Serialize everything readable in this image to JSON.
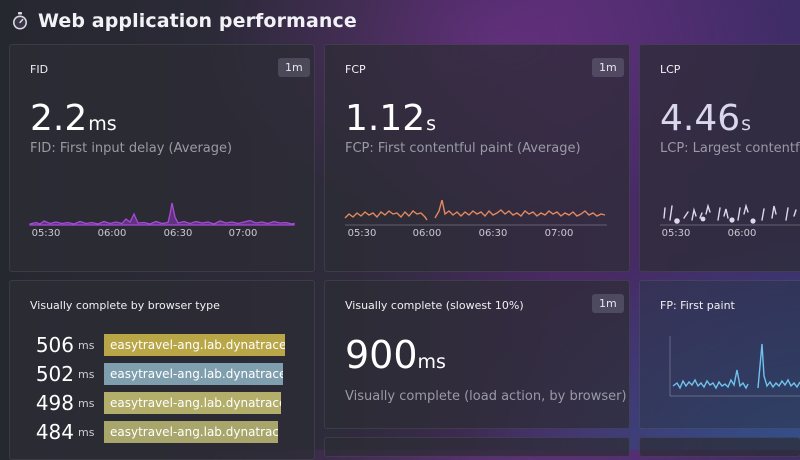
{
  "header": {
    "title": "Web application performance",
    "icon": "stopwatch-icon"
  },
  "tiles": {
    "fid": {
      "title": "FID",
      "badge": "1m",
      "value": "2.2",
      "unit": "ms",
      "description": "FID: First input delay (Average)",
      "ticks": [
        "05:30",
        "06:00",
        "06:30",
        "07:00"
      ],
      "color": "#9a3fcc"
    },
    "fcp": {
      "title": "FCP",
      "badge": "1m",
      "value": "1.12",
      "unit": "s",
      "description": "FCP: First contentful paint (Average)",
      "ticks": [
        "05:30",
        "06:00",
        "06:30",
        "07:00"
      ],
      "color": "#e4895d"
    },
    "lcp": {
      "title": "LCP",
      "value": "4.46",
      "unit": "s",
      "description": "LCP: Largest contentful paint (Average)",
      "ticks": [
        "05:30",
        "06:00"
      ],
      "color": "#dcd8f0"
    },
    "browser": {
      "title": "Visually complete by browser type",
      "items": [
        {
          "value": "506",
          "unit": "ms",
          "label": "easytravel-ang.lab.dynatrace.org",
          "fraction": 1.0,
          "color": "#b9a647"
        },
        {
          "value": "502",
          "unit": "ms",
          "label": "easytravel-ang.lab.dynatrace.org",
          "fraction": 0.99,
          "color": "#7f9fae"
        },
        {
          "value": "498",
          "unit": "ms",
          "label": "easytravel-ang.lab.dynatrace.org",
          "fraction": 0.98,
          "color": "#b3ae6a"
        },
        {
          "value": "484",
          "unit": "ms",
          "label": "easytravel-ang.lab.dynatrace.org",
          "fraction": 0.96,
          "color": "#a8a66a"
        }
      ]
    },
    "vc": {
      "title": "Visually complete (slowest 10%)",
      "badge": "1m",
      "value": "900",
      "unit": "ms",
      "description": "Visually complete (load action, by browser)"
    },
    "fp": {
      "title": "FP: First paint",
      "color": "#6ec3ee"
    }
  }
}
